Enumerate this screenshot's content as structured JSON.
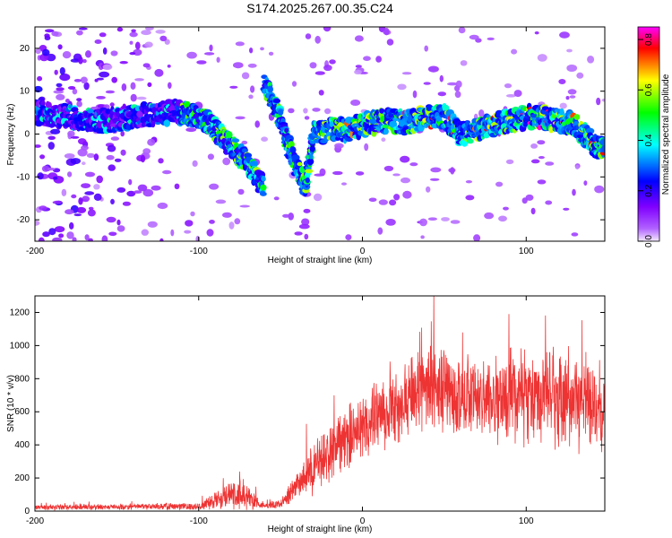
{
  "title": "S174.2025.267.00.35.C24",
  "chart_data": [
    {
      "type": "heatmap",
      "name": "spectrogram",
      "xlabel": "Height of straight line (km)",
      "ylabel": "Frequency (Hz)",
      "xlim": [
        -200,
        148
      ],
      "ylim": [
        -25,
        25
      ],
      "xticks": [
        -200,
        -100,
        0,
        100
      ],
      "xtick_labels": [
        "-200",
        "-100",
        "0",
        "100"
      ],
      "yticks": [
        -20,
        -10,
        0,
        10,
        20
      ],
      "ytick_labels": [
        "-20",
        "-10",
        "0",
        "10",
        "20"
      ],
      "colorbar": {
        "label": "Normalized spectral amplitude",
        "range": [
          0.0,
          0.85
        ],
        "ticks": [
          0.0,
          0.2,
          0.4,
          0.6,
          0.8
        ],
        "tick_labels": [
          "0.0",
          "0.2",
          "0.4",
          "0.6",
          "0.8"
        ],
        "colors": [
          "#f0e6ff",
          "#8000ff",
          "#0000ff",
          "#00ffff",
          "#00ff00",
          "#ffff00",
          "#ff0000",
          "#ff00ff"
        ]
      },
      "ridge": [
        {
          "x": -200,
          "y": 5
        },
        {
          "x": -180,
          "y": 4
        },
        {
          "x": -160,
          "y": 3
        },
        {
          "x": -140,
          "y": 4
        },
        {
          "x": -120,
          "y": 5
        },
        {
          "x": -110,
          "y": 5
        },
        {
          "x": -100,
          "y": 4
        },
        {
          "x": -95,
          "y": 3
        },
        {
          "x": -90,
          "y": 1
        },
        {
          "x": -85,
          "y": -1
        },
        {
          "x": -80,
          "y": -3
        },
        {
          "x": -75,
          "y": -5
        },
        {
          "x": -70,
          "y": -7
        },
        {
          "x": -65,
          "y": -10
        },
        {
          "x": -60,
          "y": -12
        },
        {
          "x": -60,
          "y": 12
        },
        {
          "x": -55,
          "y": 8
        },
        {
          "x": -50,
          "y": 3
        },
        {
          "x": -45,
          "y": -3
        },
        {
          "x": -40,
          "y": -8
        },
        {
          "x": -35,
          "y": -12
        },
        {
          "x": -30,
          "y": 0
        },
        {
          "x": -20,
          "y": 1
        },
        {
          "x": -10,
          "y": 1
        },
        {
          "x": 0,
          "y": 2
        },
        {
          "x": 10,
          "y": 3
        },
        {
          "x": 20,
          "y": 3
        },
        {
          "x": 30,
          "y": 3
        },
        {
          "x": 40,
          "y": 4
        },
        {
          "x": 50,
          "y": 4
        },
        {
          "x": 55,
          "y": 2
        },
        {
          "x": 60,
          "y": 0
        },
        {
          "x": 70,
          "y": 1
        },
        {
          "x": 80,
          "y": 2
        },
        {
          "x": 90,
          "y": 3
        },
        {
          "x": 100,
          "y": 4
        },
        {
          "x": 110,
          "y": 4
        },
        {
          "x": 120,
          "y": 3
        },
        {
          "x": 130,
          "y": 2
        },
        {
          "x": 140,
          "y": -2
        },
        {
          "x": 148,
          "y": -4
        }
      ]
    },
    {
      "type": "line",
      "name": "snr",
      "xlabel": "Height of straight line (km)",
      "ylabel": "SNR (10 * v/v)",
      "xlim": [
        -200,
        148
      ],
      "ylim": [
        0,
        1300
      ],
      "xticks": [
        -200,
        -100,
        0,
        100
      ],
      "xtick_labels": [
        "-200",
        "-100",
        "0",
        "100"
      ],
      "yticks": [
        0,
        200,
        400,
        600,
        800,
        1000,
        1200
      ],
      "ytick_labels": [
        "0",
        "200",
        "400",
        "600",
        "800",
        "1000",
        "1200"
      ],
      "color": "#ee3333",
      "envelope": [
        {
          "x": -200,
          "mean": 25,
          "spread": 20
        },
        {
          "x": -150,
          "mean": 25,
          "spread": 20
        },
        {
          "x": -100,
          "mean": 30,
          "spread": 25
        },
        {
          "x": -90,
          "mean": 70,
          "spread": 60
        },
        {
          "x": -80,
          "mean": 110,
          "spread": 110
        },
        {
          "x": -75,
          "mean": 120,
          "spread": 130
        },
        {
          "x": -70,
          "mean": 80,
          "spread": 80
        },
        {
          "x": -60,
          "mean": 35,
          "spread": 25
        },
        {
          "x": -50,
          "mean": 40,
          "spread": 30
        },
        {
          "x": -40,
          "mean": 150,
          "spread": 100
        },
        {
          "x": -30,
          "mean": 260,
          "spread": 180
        },
        {
          "x": -20,
          "mean": 350,
          "spread": 220
        },
        {
          "x": -10,
          "mean": 430,
          "spread": 220
        },
        {
          "x": 0,
          "mean": 500,
          "spread": 240
        },
        {
          "x": 10,
          "mean": 570,
          "spread": 250
        },
        {
          "x": 20,
          "mean": 630,
          "spread": 260
        },
        {
          "x": 30,
          "mean": 700,
          "spread": 280
        },
        {
          "x": 40,
          "mean": 720,
          "spread": 320
        },
        {
          "x": 60,
          "mean": 700,
          "spread": 300
        },
        {
          "x": 80,
          "mean": 680,
          "spread": 300
        },
        {
          "x": 100,
          "mean": 700,
          "spread": 320
        },
        {
          "x": 120,
          "mean": 680,
          "spread": 330
        },
        {
          "x": 140,
          "mean": 650,
          "spread": 350
        },
        {
          "x": 148,
          "mean": 640,
          "spread": 350
        }
      ]
    }
  ]
}
